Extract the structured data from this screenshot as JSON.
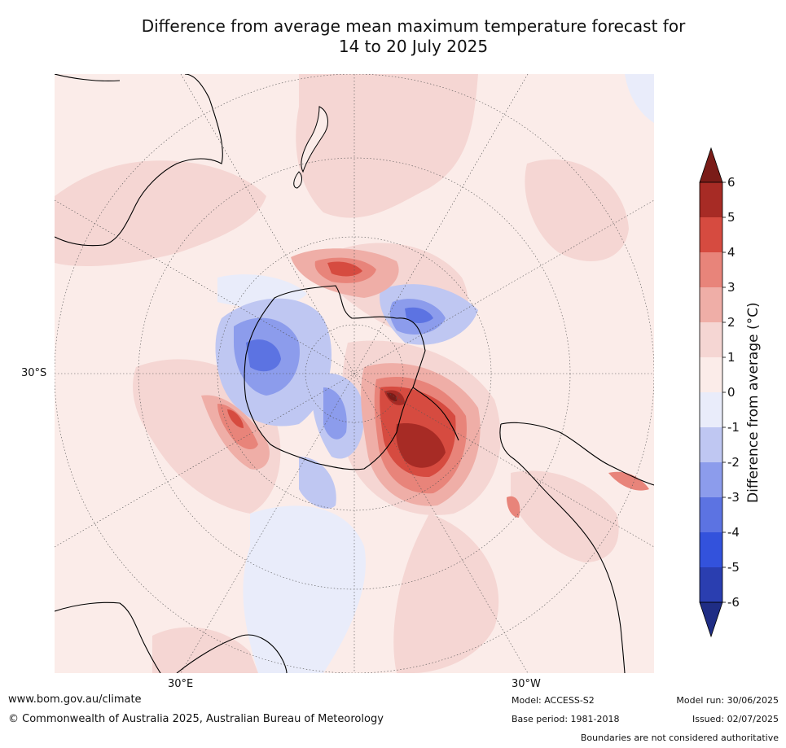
{
  "title": {
    "line1": "Difference from average mean maximum temperature forecast for",
    "line2": "14 to 20 July 2025"
  },
  "map": {
    "projection": "south-polar-stereographic",
    "lat_label": "30°S",
    "lon_labels": {
      "left": "30°E",
      "right": "30°W"
    },
    "graticule": "dotted"
  },
  "colorbar": {
    "title": "Difference from average (°C)",
    "ticks": [
      "6",
      "5",
      "4",
      "3",
      "2",
      "1",
      "0",
      "-1",
      "-2",
      "-3",
      "-4",
      "-5",
      "-6"
    ],
    "colors_top_to_bottom": [
      "#a72b25",
      "#d64b40",
      "#e8847a",
      "#efaea7",
      "#f5d6d3",
      "#fbece9",
      "#e9ecfa",
      "#bfc7f2",
      "#8c9cec",
      "#5c73e2",
      "#3352dc",
      "#2a3eb0"
    ],
    "over_color": "#7a1c18",
    "under_color": "#1f2d85"
  },
  "footer": {
    "url": "www.bom.gov.au/climate",
    "copyright": "© Commonwealth of Australia 2025, Australian Bureau of Meteorology",
    "model": "Model: ACCESS-S2",
    "base_period": "Base period: 1981-2018",
    "model_run": "Model run: 30/06/2025",
    "issued": "Issued: 02/07/2025",
    "boundaries": "Boundaries are not considered authoritative"
  }
}
